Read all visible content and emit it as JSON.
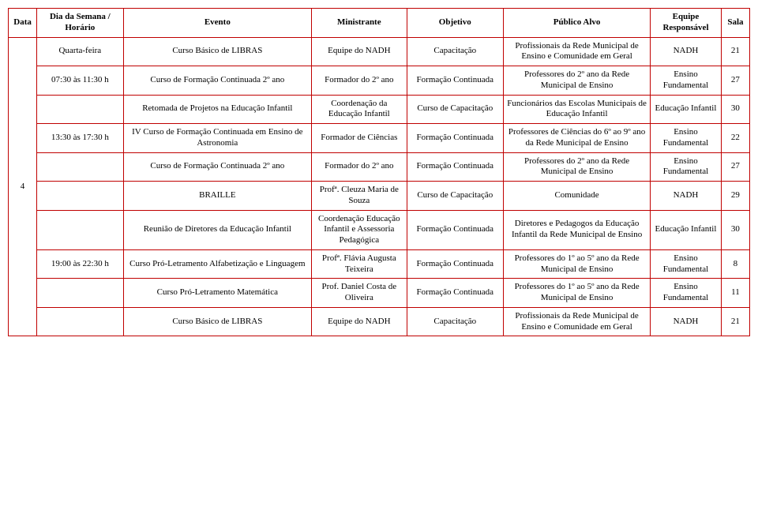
{
  "border_color": "#c00000",
  "headers": {
    "data": "Data",
    "dia": "Dia da Semana / Horário",
    "evento": "Evento",
    "ministrante": "Ministrante",
    "objetivo": "Objetivo",
    "publico": "Público Alvo",
    "equipe": "Equipe Responsável",
    "sala": "Sala"
  },
  "data_value": "4",
  "dia_groups": [
    {
      "dia": "Quarta-feira",
      "rowspan": 1
    },
    {
      "dia": "07:30 às 11:30 h",
      "rowspan": 1
    },
    {
      "dia": "",
      "rowspan": 1
    },
    {
      "dia": "13:30 às 17:30 h",
      "rowspan": 1
    },
    {
      "dia": "",
      "rowspan": 1
    },
    {
      "dia": "",
      "rowspan": 1
    },
    {
      "dia": "",
      "rowspan": 1
    },
    {
      "dia": "19:00 às 22:30 h",
      "rowspan": 1
    },
    {
      "dia": "",
      "rowspan": 1
    },
    {
      "dia": "",
      "rowspan": 1
    }
  ],
  "rows": [
    {
      "evento": "Curso Básico de LIBRAS",
      "ministrante": "Equipe do NADH",
      "objetivo": "Capacitação",
      "publico": "Profissionais da Rede Municipal de Ensino e Comunidade em Geral",
      "equipe": "NADH",
      "sala": "21"
    },
    {
      "evento": "Curso de Formação Continuada 2º ano",
      "ministrante": "Formador do 2º ano",
      "objetivo": "Formação Continuada",
      "publico": "Professores do 2º ano da Rede Municipal de Ensino",
      "equipe": "Ensino Fundamental",
      "sala": "27"
    },
    {
      "evento": "Retomada de Projetos na Educação Infantil",
      "ministrante": "Coordenação da Educação Infantil",
      "objetivo": "Curso de Capacitação",
      "publico": "Funcionários das Escolas Municipais de Educação Infantil",
      "equipe": "Educação Infantil",
      "sala": "30"
    },
    {
      "evento": "IV Curso de Formação Continuada em Ensino de Astronomia",
      "ministrante": "Formador de Ciências",
      "objetivo": "Formação Continuada",
      "publico": "Professores de Ciências do 6º ao 9º ano da Rede Municipal de Ensino",
      "equipe": "Ensino Fundamental",
      "sala": "22"
    },
    {
      "evento": "Curso de Formação Continuada 2º ano",
      "ministrante": "Formador do 2º ano",
      "objetivo": "Formação Continuada",
      "publico": "Professores do 2º ano da Rede Municipal de Ensino",
      "equipe": "Ensino Fundamental",
      "sala": "27"
    },
    {
      "evento": "BRAILLE",
      "ministrante": "Profª. Cleuza Maria de Souza",
      "objetivo": "Curso de Capacitação",
      "publico": "Comunidade",
      "equipe": "NADH",
      "sala": "29"
    },
    {
      "evento": "Reunião de Diretores da Educação Infantil",
      "ministrante": "Coordenação Educação Infantil e Assessoria Pedagógica",
      "objetivo": "Formação Continuada",
      "publico": "Diretores e Pedagogos da Educação Infantil da Rede Municipal de Ensino",
      "equipe": "Educação Infantil",
      "sala": "30"
    },
    {
      "evento": "Curso Pró-Letramento Alfabetização e Linguagem",
      "ministrante": "Profª. Flávia Augusta Teixeira",
      "objetivo": "Formação Continuada",
      "publico": "Professores do 1º ao 5º ano da Rede Municipal de Ensino",
      "equipe": "Ensino Fundamental",
      "sala": "8"
    },
    {
      "evento": "Curso Pró-Letramento Matemática",
      "ministrante": "Prof. Daniel Costa de Oliveira",
      "objetivo": "Formação Continuada",
      "publico": "Professores do 1º ao 5º ano da Rede Municipal de Ensino",
      "equipe": "Ensino Fundamental",
      "sala": "11"
    },
    {
      "evento": "Curso Básico de LIBRAS",
      "ministrante": "Equipe do NADH",
      "objetivo": "Capacitação",
      "publico": "Profissionais da Rede Municipal de Ensino e Comunidade em Geral",
      "equipe": "NADH",
      "sala": "21"
    }
  ]
}
